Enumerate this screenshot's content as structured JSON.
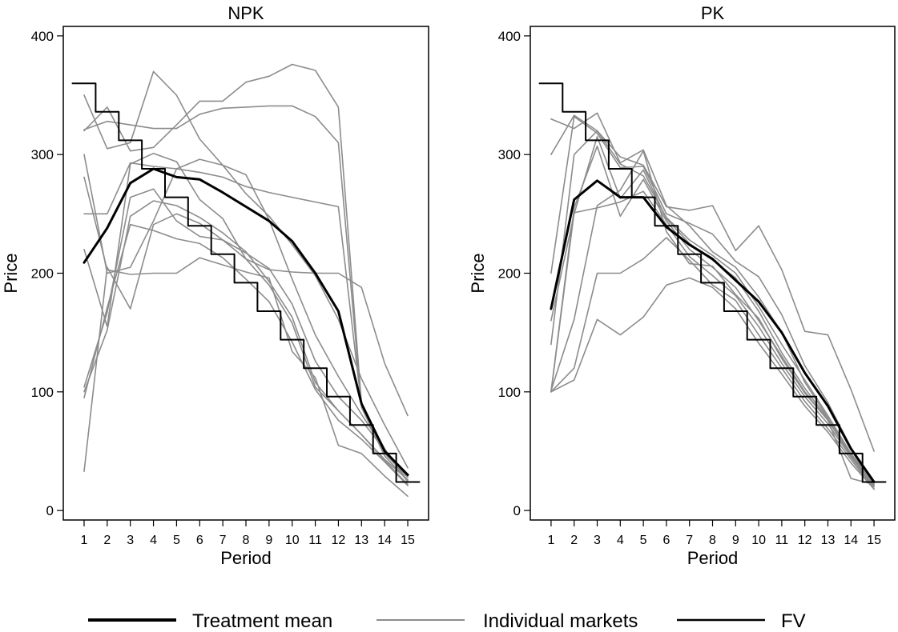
{
  "legend": {
    "items": [
      {
        "label": "Treatment mean",
        "color": "#000000",
        "style": "thick"
      },
      {
        "label": "Individual markets",
        "color": "#8c8c8c",
        "style": "thin"
      },
      {
        "label": "FV",
        "color": "#000000",
        "style": "medium"
      }
    ]
  },
  "chart_data": [
    {
      "type": "line",
      "title": "NPK",
      "xlabel": "Period",
      "ylabel": "Price",
      "x": [
        1,
        2,
        3,
        4,
        5,
        6,
        7,
        8,
        9,
        10,
        11,
        12,
        13,
        14,
        15
      ],
      "xticks": [
        1,
        2,
        3,
        4,
        5,
        6,
        7,
        8,
        9,
        10,
        11,
        12,
        13,
        14,
        15
      ],
      "yticks": [
        0,
        100,
        200,
        300,
        400
      ],
      "xlim": [
        0.1,
        15.9
      ],
      "ylim": [
        -8,
        408
      ],
      "grid": false,
      "legend_position": "bottom",
      "series": [
        {
          "name": "Treatment mean",
          "role": "mean",
          "color": "#000000",
          "values": [
            209,
            238,
            276,
            288,
            281,
            279,
            268,
            256,
            244,
            227,
            200,
            168,
            90,
            50,
            30
          ]
        },
        {
          "name": "FV",
          "role": "fv",
          "color": "#000000",
          "steps": [
            [
              0.5,
              360
            ],
            [
              1.5,
              336
            ],
            [
              2.5,
              312
            ],
            [
              3.5,
              288
            ],
            [
              4.5,
              264
            ],
            [
              5.5,
              240
            ],
            [
              6.5,
              216
            ],
            [
              7.5,
              192
            ],
            [
              8.5,
              168
            ],
            [
              9.5,
              144
            ],
            [
              10.5,
              120
            ],
            [
              11.5,
              96
            ],
            [
              12.5,
              72
            ],
            [
              13.5,
              48
            ],
            [
              14.5,
              24
            ],
            [
              15.5,
              24
            ]
          ]
        },
        {
          "role": "market",
          "color": "#8c8c8c",
          "values": [
            350,
            305,
            310,
            370,
            350,
            313,
            291,
            267,
            248,
            224,
            198,
            161,
            111,
            72,
            36
          ]
        },
        {
          "role": "market",
          "color": "#8c8c8c",
          "values": [
            320,
            340,
            303,
            306,
            325,
            345,
            345,
            361,
            366,
            376,
            371,
            340,
            90,
            48,
            28
          ]
        },
        {
          "role": "market",
          "color": "#8c8c8c",
          "values": [
            321,
            328,
            325,
            322,
            322,
            334,
            339,
            340,
            341,
            341,
            332,
            310,
            87,
            46,
            25
          ]
        },
        {
          "role": "market",
          "color": "#8c8c8c",
          "values": [
            300,
            200,
            205,
            244,
            288,
            285,
            281,
            273,
            268,
            264,
            260,
            256,
            88,
            52,
            24
          ]
        },
        {
          "role": "market",
          "color": "#8c8c8c",
          "values": [
            250,
            250,
            293,
            290,
            288,
            296,
            291,
            283,
            245,
            195,
            148,
            113,
            81,
            51,
            28
          ]
        },
        {
          "role": "market",
          "color": "#8c8c8c",
          "values": [
            220,
            155,
            292,
            301,
            294,
            262,
            246,
            212,
            190,
            158,
            104,
            84,
            64,
            43,
            26
          ]
        },
        {
          "role": "market",
          "color": "#8c8c8c",
          "values": [
            104,
            167,
            264,
            271,
            244,
            231,
            228,
            217,
            204,
            174,
            126,
            96,
            76,
            51,
            25
          ]
        },
        {
          "role": "market",
          "color": "#8c8c8c",
          "values": [
            100,
            152,
            248,
            261,
            257,
            247,
            234,
            218,
            193,
            163,
            108,
            84,
            64,
            42,
            22
          ]
        },
        {
          "role": "market",
          "color": "#8c8c8c",
          "values": [
            95,
            171,
            241,
            236,
            229,
            225,
            213,
            195,
            176,
            142,
            102,
            76,
            60,
            41,
            21
          ]
        },
        {
          "role": "market",
          "color": "#8c8c8c",
          "values": [
            33,
            205,
            170,
            241,
            250,
            242,
            228,
            212,
            203,
            201,
            200,
            200,
            188,
            124,
            80
          ]
        },
        {
          "role": "market",
          "color": "#8c8c8c",
          "values": [
            281,
            203,
            199,
            200,
            200,
            213,
            207,
            201,
            196,
            134,
            112,
            55,
            48,
            29,
            12
          ]
        }
      ]
    },
    {
      "type": "line",
      "title": "PK",
      "xlabel": "Period",
      "ylabel": "Price",
      "x": [
        1,
        2,
        3,
        4,
        5,
        6,
        7,
        8,
        9,
        10,
        11,
        12,
        13,
        14,
        15
      ],
      "xticks": [
        1,
        2,
        3,
        4,
        5,
        6,
        7,
        8,
        9,
        10,
        11,
        12,
        13,
        14,
        15
      ],
      "yticks": [
        0,
        100,
        200,
        300,
        400
      ],
      "xlim": [
        0.1,
        15.9
      ],
      "ylim": [
        -8,
        408
      ],
      "grid": false,
      "legend_position": "bottom",
      "series": [
        {
          "name": "Treatment mean",
          "role": "mean",
          "color": "#000000",
          "values": [
            170,
            262,
            278,
            264,
            264,
            239,
            224,
            212,
            194,
            176,
            150,
            116,
            88,
            52,
            24
          ]
        },
        {
          "name": "FV",
          "role": "fv",
          "color": "#000000",
          "steps": [
            [
              0.5,
              360
            ],
            [
              1.5,
              336
            ],
            [
              2.5,
              312
            ],
            [
              3.5,
              288
            ],
            [
              4.5,
              264
            ],
            [
              5.5,
              240
            ],
            [
              6.5,
              216
            ],
            [
              7.5,
              192
            ],
            [
              8.5,
              168
            ],
            [
              9.5,
              144
            ],
            [
              10.5,
              120
            ],
            [
              11.5,
              96
            ],
            [
              12.5,
              72
            ],
            [
              13.5,
              48
            ],
            [
              14.5,
              24
            ],
            [
              15.5,
              24
            ]
          ]
        },
        {
          "role": "market",
          "color": "#8c8c8c",
          "values": [
            330,
            322,
            335,
            293,
            304,
            257,
            240,
            218,
            205,
            180,
            150,
            108,
            78,
            46,
            18
          ]
        },
        {
          "role": "market",
          "color": "#8c8c8c",
          "values": [
            300,
            333,
            320,
            298,
            291,
            256,
            253,
            257,
            219,
            240,
            203,
            151,
            148,
            102,
            50
          ]
        },
        {
          "role": "market",
          "color": "#8c8c8c",
          "values": [
            200,
            332,
            318,
            289,
            290,
            250,
            242,
            233,
            210,
            197,
            165,
            122,
            91,
            53,
            24
          ]
        },
        {
          "role": "market",
          "color": "#8c8c8c",
          "values": [
            140,
            300,
            320,
            292,
            282,
            247,
            228,
            215,
            200,
            172,
            140,
            110,
            80,
            48,
            24
          ]
        },
        {
          "role": "market",
          "color": "#8c8c8c",
          "values": [
            160,
            250,
            315,
            263,
            287,
            246,
            225,
            211,
            196,
            168,
            133,
            103,
            77,
            47,
            22
          ]
        },
        {
          "role": "market",
          "color": "#8c8c8c",
          "values": [
            100,
            255,
            307,
            248,
            279,
            244,
            220,
            205,
            188,
            160,
            130,
            100,
            76,
            46,
            21
          ]
        },
        {
          "role": "market",
          "color": "#8c8c8c",
          "values": [
            100,
            251,
            255,
            260,
            269,
            241,
            214,
            198,
            181,
            155,
            124,
            96,
            73,
            45,
            20
          ]
        },
        {
          "role": "market",
          "color": "#8c8c8c",
          "values": [
            100,
            120,
            200,
            200,
            212,
            230,
            211,
            190,
            177,
            148,
            120,
            92,
            69,
            43,
            18
          ]
        },
        {
          "role": "market",
          "color": "#8c8c8c",
          "values": [
            100,
            110,
            161,
            148,
            163,
            190,
            196,
            188,
            170,
            141,
            115,
            88,
            66,
            40,
            18
          ]
        },
        {
          "role": "market",
          "color": "#8c8c8c",
          "values": [
            101,
            161,
            257,
            270,
            303,
            235,
            208,
            206,
            182,
            162,
            128,
            99,
            76,
            27,
            22
          ]
        }
      ]
    }
  ]
}
